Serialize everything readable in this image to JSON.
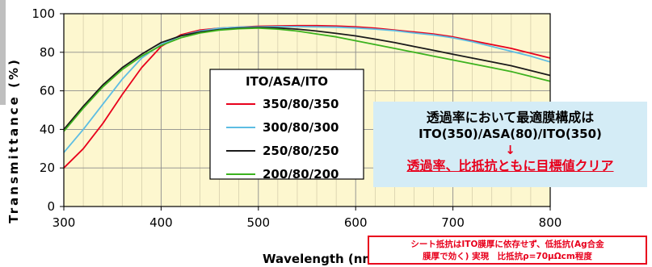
{
  "chart_data": {
    "type": "line",
    "title": "",
    "xlabel": "Wavelength (nm)",
    "ylabel": "Transmittance (%)",
    "xlim": [
      300,
      800
    ],
    "ylim": [
      0,
      100
    ],
    "xticks": [
      300,
      400,
      500,
      600,
      700,
      800
    ],
    "yticks": [
      0,
      20,
      40,
      60,
      80,
      100
    ],
    "grid": true,
    "plot_background": "#fdf7cf",
    "legend": {
      "title": "ITO/ASA/ITO",
      "placement": "center"
    },
    "series": [
      {
        "name": "350/80/350",
        "color": "#e8001c",
        "x": [
          300,
          320,
          340,
          360,
          380,
          400,
          420,
          440,
          460,
          480,
          500,
          520,
          540,
          560,
          580,
          600,
          620,
          640,
          660,
          680,
          700,
          720,
          740,
          760,
          780,
          800
        ],
        "y": [
          20,
          30,
          43,
          58,
          72,
          83,
          89,
          91.5,
          92.5,
          93,
          93.5,
          93.7,
          93.8,
          93.8,
          93.6,
          93.2,
          92.5,
          91.5,
          90.5,
          89.5,
          88,
          86,
          84,
          82,
          79.5,
          77
        ]
      },
      {
        "name": "300/80/300",
        "color": "#5dbde3",
        "x": [
          300,
          320,
          340,
          360,
          380,
          400,
          420,
          440,
          460,
          480,
          500,
          520,
          540,
          560,
          580,
          600,
          620,
          640,
          660,
          680,
          700,
          720,
          740,
          760,
          780,
          800
        ],
        "y": [
          28,
          40,
          53,
          66,
          77,
          84,
          88.5,
          91,
          92.5,
          93,
          93.2,
          93.3,
          93.3,
          93.2,
          93,
          92.6,
          92,
          91.2,
          90,
          89,
          87.5,
          85.5,
          83,
          80.5,
          78,
          75
        ]
      },
      {
        "name": "250/80/250",
        "color": "#1a1a1a",
        "x": [
          300,
          320,
          340,
          360,
          380,
          400,
          420,
          440,
          460,
          480,
          500,
          520,
          540,
          560,
          580,
          600,
          620,
          640,
          660,
          680,
          700,
          720,
          740,
          760,
          780,
          800
        ],
        "y": [
          40,
          52,
          63,
          72,
          79,
          85,
          88.5,
          90.5,
          91.8,
          92.5,
          92.8,
          92.6,
          92,
          91,
          89.8,
          88.5,
          86.8,
          85,
          83,
          81,
          79,
          77,
          75,
          73,
          70.5,
          68
        ]
      },
      {
        "name": "200/80/200",
        "color": "#3cb21e",
        "x": [
          300,
          320,
          340,
          360,
          380,
          400,
          420,
          440,
          460,
          480,
          500,
          520,
          540,
          560,
          580,
          600,
          620,
          640,
          660,
          680,
          700,
          720,
          740,
          760,
          780,
          800
        ],
        "y": [
          39,
          51,
          62,
          71,
          78,
          83.5,
          87.5,
          90,
          91.5,
          92.2,
          92.5,
          92,
          91,
          89.5,
          88,
          86,
          84,
          82,
          80,
          78,
          76,
          74,
          72,
          70,
          67.5,
          65
        ]
      }
    ]
  },
  "note": {
    "line1": "透過率において最適膜構成は",
    "line2": "ITO(350)/ASA(80)/ITO(350)",
    "arrow": "↓",
    "line3": "透過率、比抵抗ともに目標値クリア"
  },
  "footer": {
    "line1": "シート抵抗はITO膜厚に依存せず、低抵抗(Ag合金",
    "line2": "膜厚で効く) 実現　比抵抗ρ=70μΩcm程度"
  }
}
